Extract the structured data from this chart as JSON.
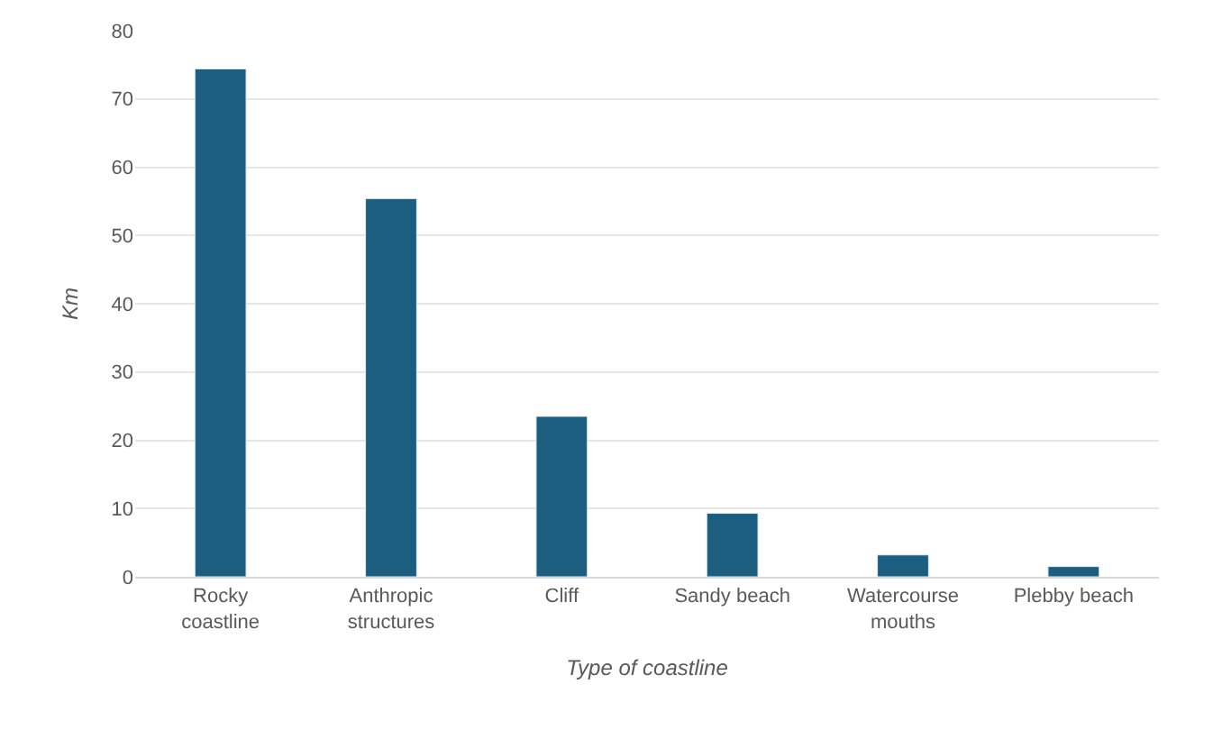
{
  "chart_data": {
    "type": "bar",
    "xlabel": "Type of coastline",
    "ylabel": "Km",
    "categories": [
      "Rocky coastline",
      "Anthropic structures",
      "Cliff",
      "Sandy beach",
      "Watercourse mouths",
      "Plebby beach"
    ],
    "values": [
      74.4,
      55.4,
      23.5,
      9.3,
      3.2,
      1.5
    ],
    "color": "#1b5e80",
    "ylim": [
      0,
      80
    ],
    "yticks": [
      0,
      10,
      20,
      30,
      40,
      50,
      60,
      70,
      80
    ],
    "grid": "y"
  }
}
